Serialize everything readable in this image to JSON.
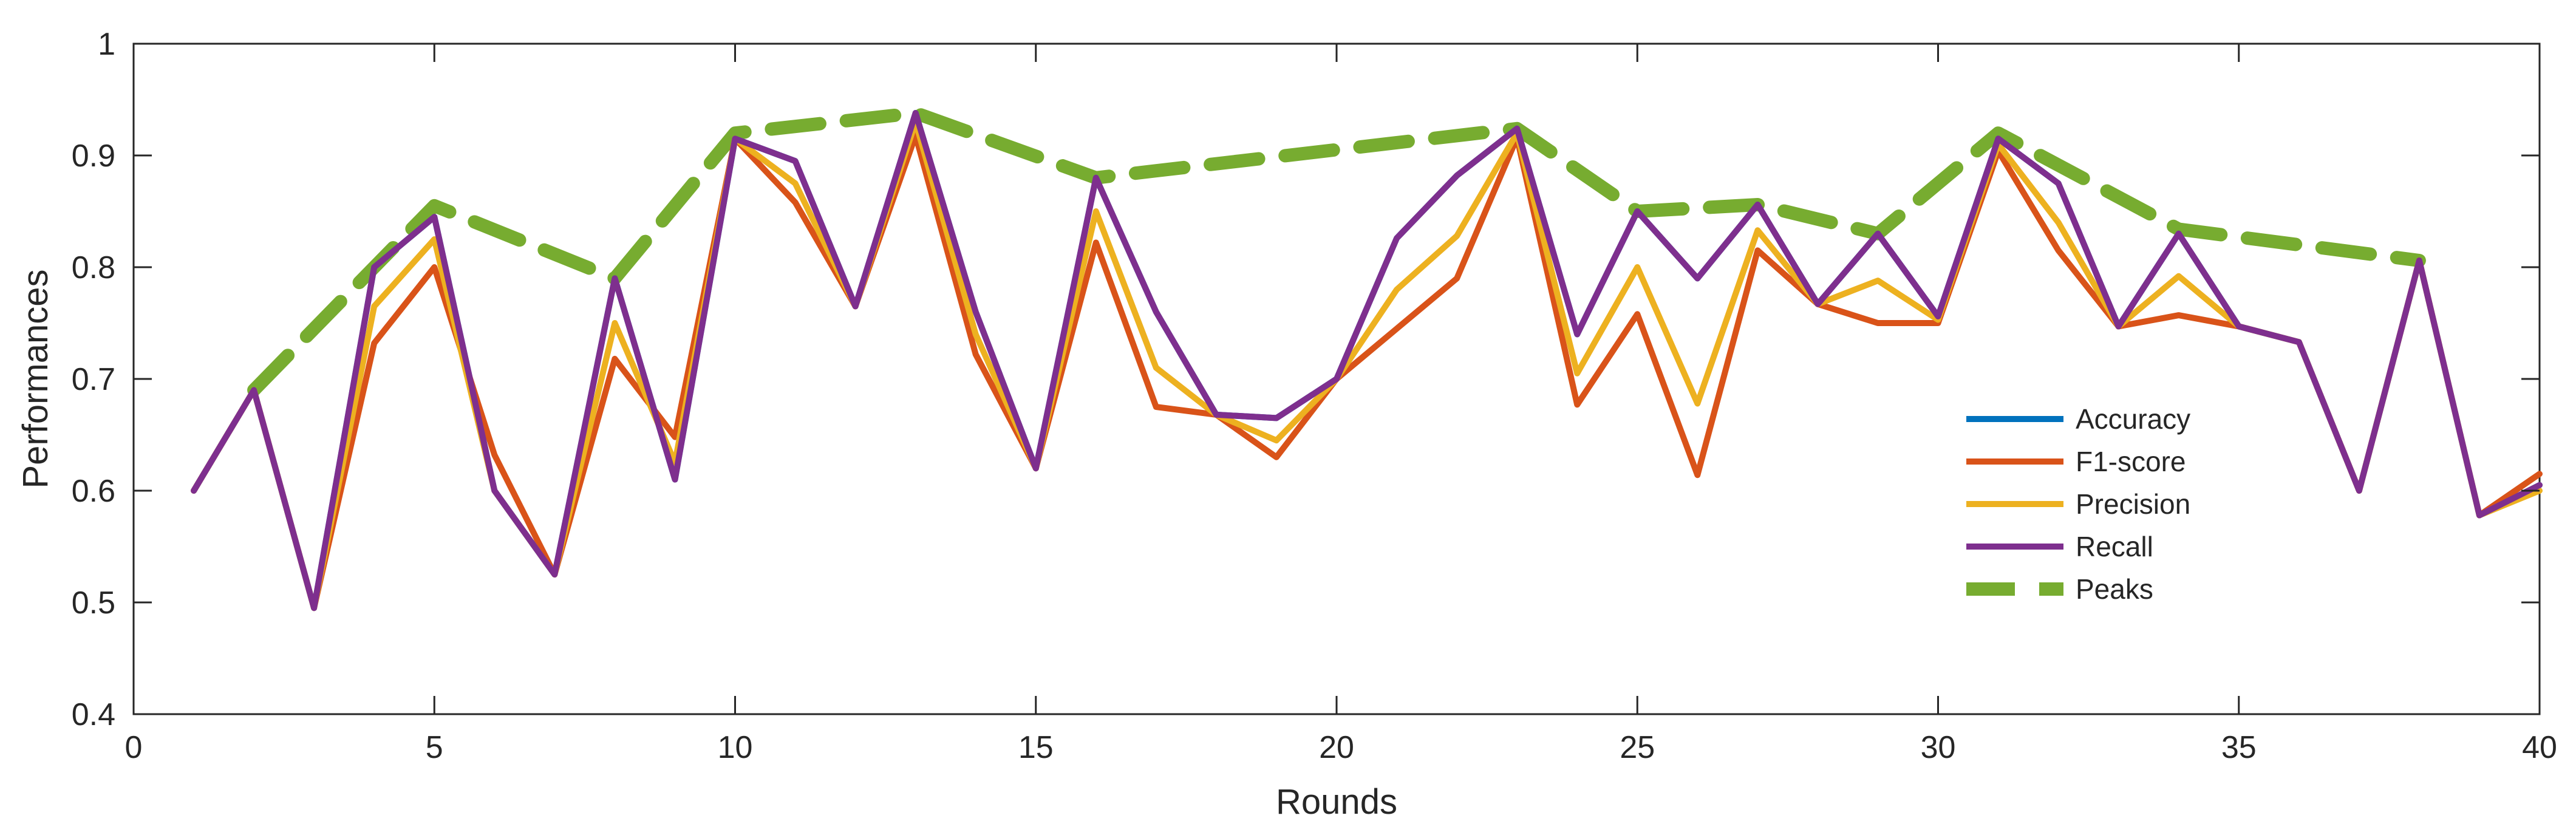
{
  "chart_data": {
    "type": "line",
    "xlabel": "Rounds",
    "ylabel": "Performances",
    "xlim": [
      0,
      40
    ],
    "ylim": [
      0.4,
      1
    ],
    "xticks": [
      0,
      5,
      10,
      15,
      20,
      25,
      30,
      35,
      40
    ],
    "yticks": [
      0.4,
      0.5,
      0.6,
      0.7,
      0.8,
      0.9,
      1
    ],
    "ytick_labels": [
      "0.4",
      "0.5",
      "0.6",
      "0.7",
      "0.8",
      "0.9",
      "1"
    ],
    "grid": false,
    "legend_position": "right",
    "x": [
      1,
      2,
      3,
      4,
      5,
      6,
      7,
      8,
      9,
      10,
      11,
      12,
      13,
      14,
      15,
      16,
      17,
      18,
      19,
      20,
      21,
      22,
      23,
      24,
      25,
      26,
      27,
      28,
      29,
      30,
      31,
      32,
      33,
      34,
      35,
      36,
      37,
      38,
      39,
      40
    ],
    "series": [
      {
        "name": "Accuracy",
        "color": "#0072BD",
        "dashed": false,
        "values": [
          0.6,
          0.69,
          0.495,
          0.8,
          0.845,
          0.6,
          0.525,
          0.79,
          0.61,
          0.915,
          0.895,
          0.765,
          0.938,
          0.76,
          0.62,
          0.88,
          0.76,
          0.668,
          0.665,
          0.7,
          0.826,
          0.882,
          0.924,
          0.74,
          0.85,
          0.79,
          0.856,
          0.767,
          0.83,
          0.756,
          0.915,
          0.875,
          0.747,
          0.83,
          0.747,
          0.733,
          0.6,
          0.806,
          0.578,
          0.605
        ]
      },
      {
        "name": "F1-score",
        "color": "#D95319",
        "dashed": false,
        "values": [
          0.6,
          0.69,
          0.495,
          0.732,
          0.8,
          0.632,
          0.525,
          0.718,
          0.648,
          0.915,
          0.858,
          0.765,
          0.918,
          0.722,
          0.62,
          0.822,
          0.675,
          0.668,
          0.63,
          0.7,
          0.745,
          0.79,
          0.916,
          0.677,
          0.758,
          0.614,
          0.815,
          0.767,
          0.75,
          0.75,
          0.904,
          0.815,
          0.747,
          0.757,
          0.747,
          0.733,
          0.6,
          0.806,
          0.578,
          0.615
        ]
      },
      {
        "name": "Precision",
        "color": "#EDB120",
        "dashed": false,
        "values": [
          0.6,
          0.69,
          0.495,
          0.765,
          0.825,
          0.6,
          0.525,
          0.75,
          0.625,
          0.915,
          0.875,
          0.765,
          0.93,
          0.74,
          0.62,
          0.85,
          0.71,
          0.668,
          0.645,
          0.7,
          0.78,
          0.828,
          0.92,
          0.705,
          0.8,
          0.678,
          0.833,
          0.767,
          0.788,
          0.753,
          0.91,
          0.84,
          0.747,
          0.792,
          0.747,
          0.733,
          0.6,
          0.806,
          0.578,
          0.6
        ]
      },
      {
        "name": "Recall",
        "color": "#7E2F8E",
        "dashed": false,
        "values": [
          0.6,
          0.69,
          0.495,
          0.8,
          0.845,
          0.6,
          0.525,
          0.79,
          0.61,
          0.915,
          0.895,
          0.765,
          0.938,
          0.76,
          0.62,
          0.88,
          0.76,
          0.668,
          0.665,
          0.7,
          0.826,
          0.882,
          0.924,
          0.74,
          0.85,
          0.79,
          0.856,
          0.767,
          0.83,
          0.756,
          0.915,
          0.875,
          0.747,
          0.83,
          0.747,
          0.733,
          0.6,
          0.806,
          0.578,
          0.605
        ]
      },
      {
        "name": "Peaks",
        "color": "#77AC30",
        "dashed": true,
        "x": [
          2,
          5,
          8,
          10,
          13,
          16,
          23,
          25,
          27,
          29,
          31,
          34,
          38
        ],
        "values": [
          0.69,
          0.855,
          0.79,
          0.92,
          0.938,
          0.88,
          0.924,
          0.85,
          0.856,
          0.83,
          0.92,
          0.834,
          0.806
        ]
      }
    ]
  }
}
